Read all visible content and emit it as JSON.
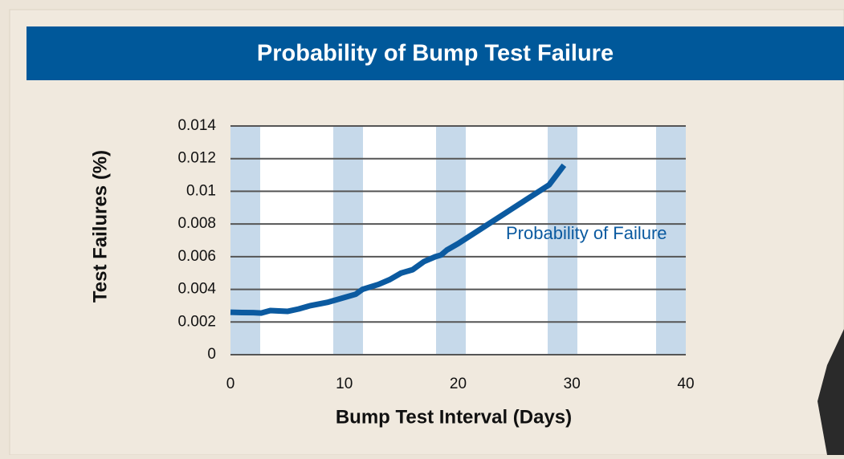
{
  "chart_data": {
    "type": "line",
    "title": "Probability of Bump Test Failure",
    "x_label": "Bump Test Interval (Days)",
    "y_label": "Test Failures (%)",
    "x": [
      0,
      1,
      2,
      2.7,
      3.5,
      5,
      6,
      7,
      8.5,
      10,
      11,
      11.6,
      13,
      14,
      15,
      16,
      17,
      18,
      18.5,
      19,
      20,
      22,
      24,
      26,
      28,
      29.3
    ],
    "series": [
      {
        "name": "Probability of Failure",
        "color": "#0b5aa0",
        "values": [
          0.0026,
          0.00258,
          0.00257,
          0.00255,
          0.0027,
          0.00265,
          0.0028,
          0.003,
          0.0032,
          0.0035,
          0.0037,
          0.004,
          0.0043,
          0.0046,
          0.005,
          0.0052,
          0.0057,
          0.006,
          0.0061,
          0.0064,
          0.0068,
          0.0077,
          0.0086,
          0.0095,
          0.0104,
          0.0116
        ]
      }
    ],
    "xlim": [
      0,
      40
    ],
    "xticks": [
      0,
      10,
      20,
      30,
      40
    ],
    "ylim": [
      0,
      0.014
    ],
    "yticks": [
      0,
      0.002,
      0.004,
      0.006,
      0.008,
      0.01,
      0.012,
      0.014
    ],
    "grid": true
  }
}
